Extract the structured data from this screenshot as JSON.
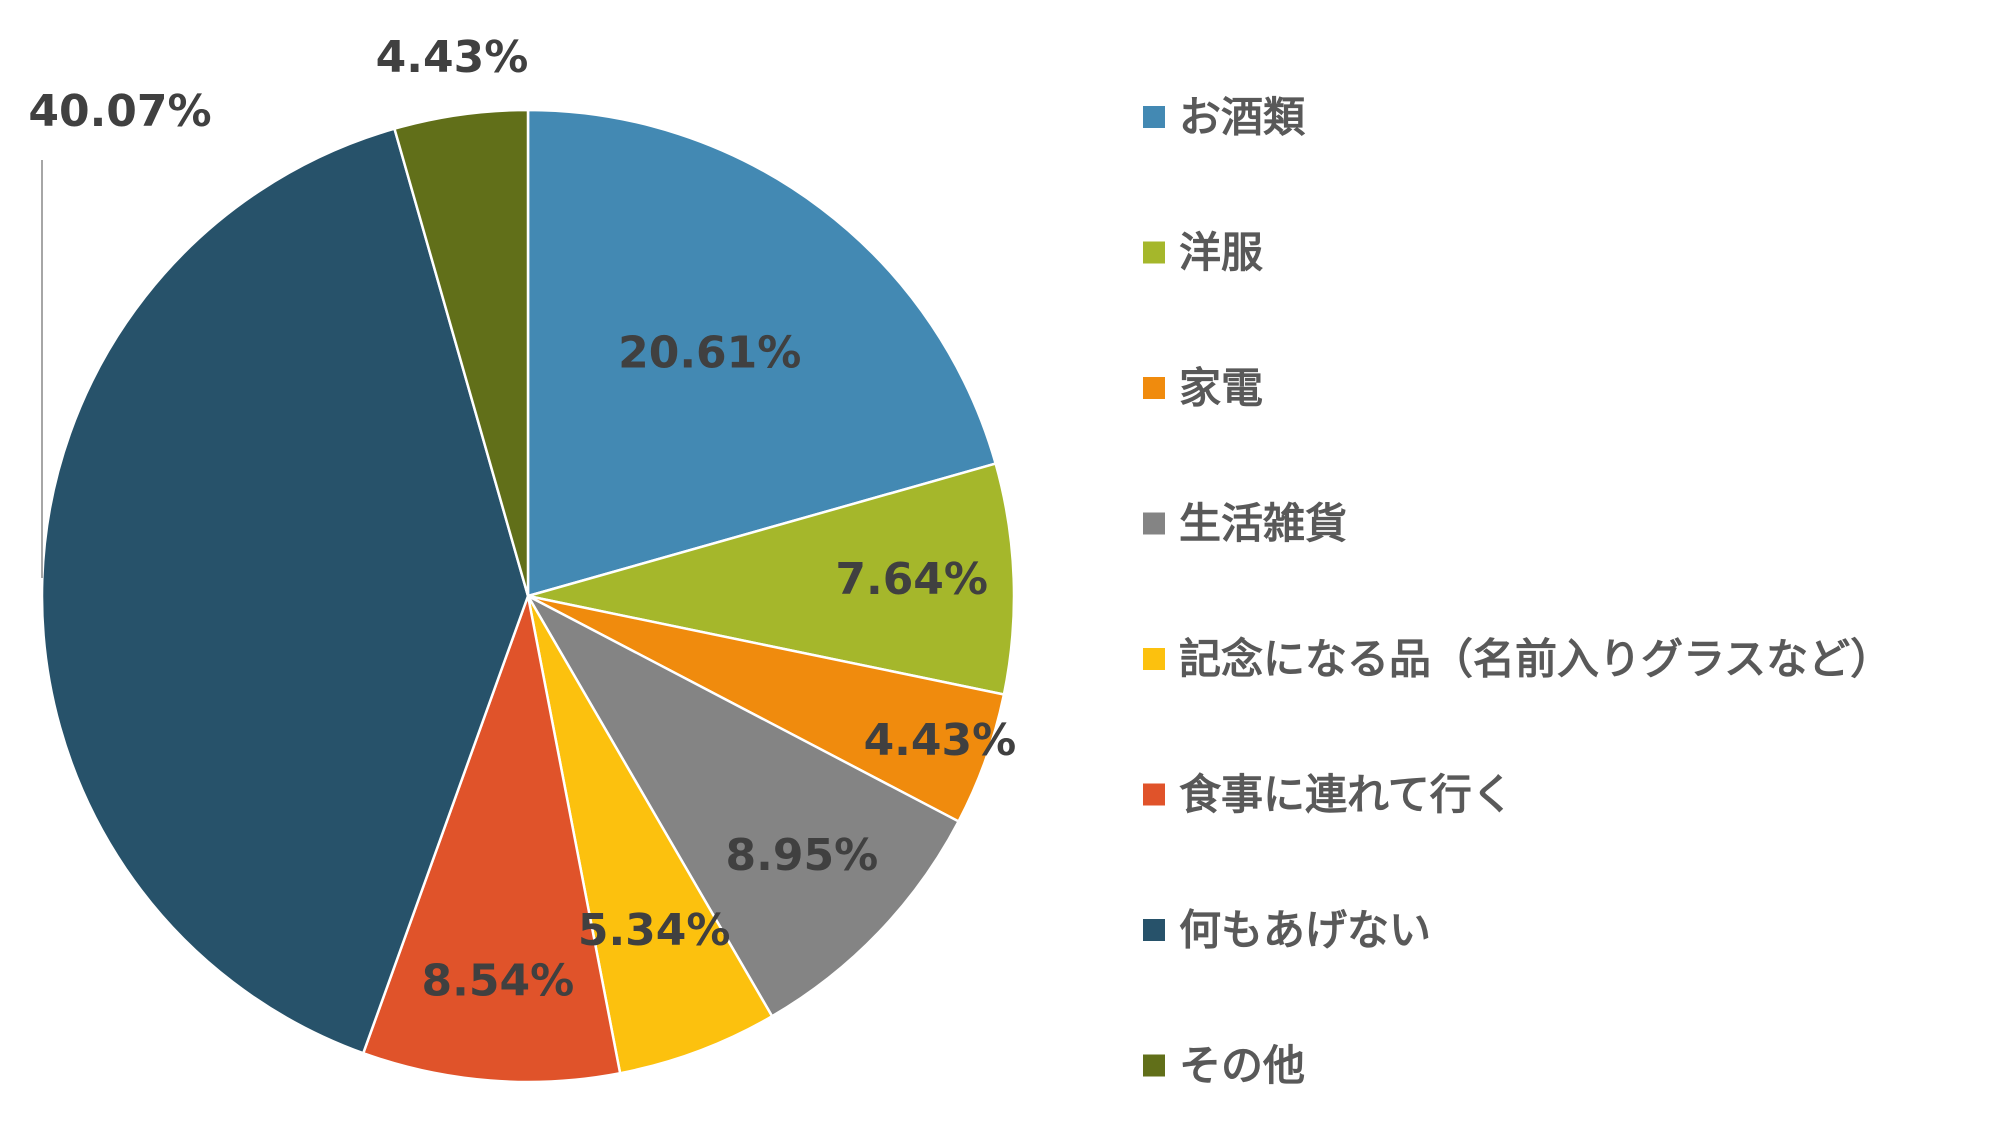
{
  "chart_data": {
    "type": "pie",
    "title": "",
    "legend_position": "right",
    "categories": [
      "お酒類",
      "洋服",
      "家電",
      "生活雑貨",
      "記念になる品（名前入りグラスなど）",
      "食事に連れて行く",
      "何もあげない",
      "その他"
    ],
    "values": [
      20.61,
      7.64,
      4.43,
      8.95,
      5.34,
      8.54,
      40.07,
      4.43
    ],
    "labels": [
      "20.61%",
      "7.64%",
      "4.43%",
      "8.95%",
      "5.34%",
      "8.54%",
      "40.07%",
      "4.43%"
    ],
    "colors": [
      "#4389B3",
      "#A5B72B",
      "#F08B0D",
      "#848484",
      "#FCC10E",
      "#E0532A",
      "#27526A",
      "#616F19"
    ]
  }
}
